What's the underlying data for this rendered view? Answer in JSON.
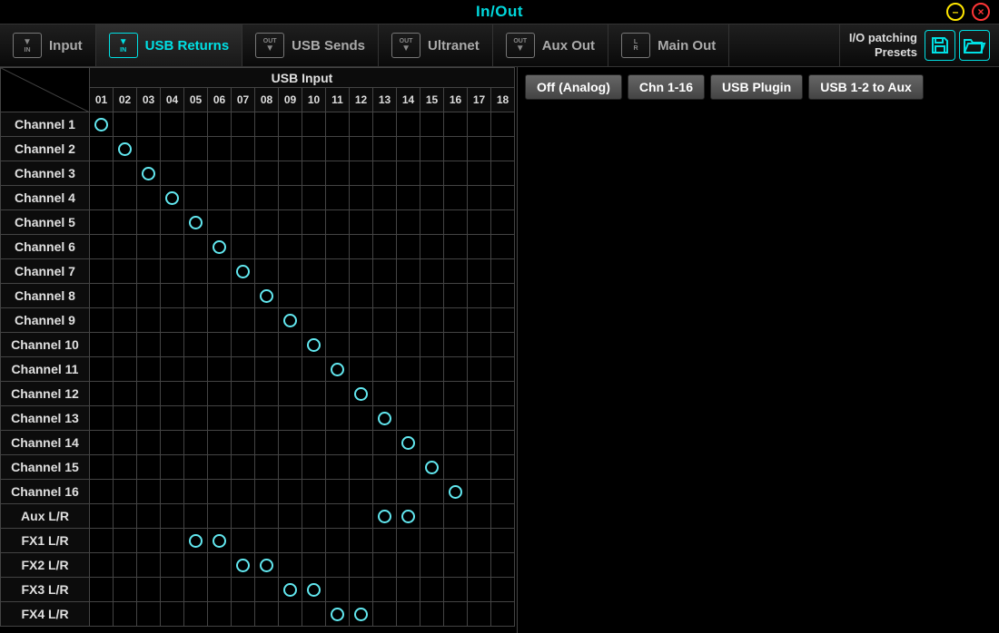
{
  "title": "In/Out",
  "colors": {
    "accent": "#00e0e4",
    "patch_ring": "#62e8f0",
    "background": "#000000",
    "grid_line": "#444444",
    "text": "#e0e0e0",
    "minimize": "#ffe600",
    "close": "#ff3636"
  },
  "tabs": [
    {
      "label": "Input",
      "icon_top": "▼",
      "icon_bot": "IN",
      "active": false
    },
    {
      "label": "USB Returns",
      "icon_top": "▼",
      "icon_bot": "IN",
      "active": true
    },
    {
      "label": "USB Sends",
      "icon_top": "OUT",
      "icon_bot": "▼",
      "active": false
    },
    {
      "label": "Ultranet",
      "icon_top": "OUT",
      "icon_bot": "▼",
      "active": false
    },
    {
      "label": "Aux Out",
      "icon_top": "OUT",
      "icon_bot": "▼",
      "active": false
    },
    {
      "label": "Main Out",
      "icon_top": "L",
      "icon_bot": "R",
      "active": false
    }
  ],
  "presets": {
    "label_line1": "I/O patching",
    "label_line2": "Presets",
    "buttons": [
      {
        "label": "Off (Analog)"
      },
      {
        "label": "Chn 1-16"
      },
      {
        "label": "USB Plugin"
      },
      {
        "label": "USB 1-2 to Aux"
      }
    ]
  },
  "matrix": {
    "column_group_label": "USB Input",
    "columns": [
      "01",
      "02",
      "03",
      "04",
      "05",
      "06",
      "07",
      "08",
      "09",
      "10",
      "11",
      "12",
      "13",
      "14",
      "15",
      "16",
      "17",
      "18"
    ],
    "rows": [
      {
        "name": "Channel 1",
        "patches": [
          1
        ]
      },
      {
        "name": "Channel 2",
        "patches": [
          2
        ]
      },
      {
        "name": "Channel 3",
        "patches": [
          3
        ]
      },
      {
        "name": "Channel 4",
        "patches": [
          4
        ]
      },
      {
        "name": "Channel 5",
        "patches": [
          5
        ]
      },
      {
        "name": "Channel 6",
        "patches": [
          6
        ]
      },
      {
        "name": "Channel 7",
        "patches": [
          7
        ]
      },
      {
        "name": "Channel 8",
        "patches": [
          8
        ]
      },
      {
        "name": "Channel 9",
        "patches": [
          9
        ]
      },
      {
        "name": "Channel 10",
        "patches": [
          10
        ]
      },
      {
        "name": "Channel 11",
        "patches": [
          11
        ]
      },
      {
        "name": "Channel 12",
        "patches": [
          12
        ]
      },
      {
        "name": "Channel 13",
        "patches": [
          13
        ]
      },
      {
        "name": "Channel 14",
        "patches": [
          14
        ]
      },
      {
        "name": "Channel 15",
        "patches": [
          15
        ]
      },
      {
        "name": "Channel 16",
        "patches": [
          16
        ]
      },
      {
        "name": "Aux L/R",
        "patches": [
          13,
          14
        ]
      },
      {
        "name": "FX1 L/R",
        "patches": [
          5,
          6
        ]
      },
      {
        "name": "FX2 L/R",
        "patches": [
          7,
          8
        ]
      },
      {
        "name": "FX3 L/R",
        "patches": [
          9,
          10
        ]
      },
      {
        "name": "FX4 L/R",
        "patches": [
          11,
          12
        ]
      }
    ]
  }
}
